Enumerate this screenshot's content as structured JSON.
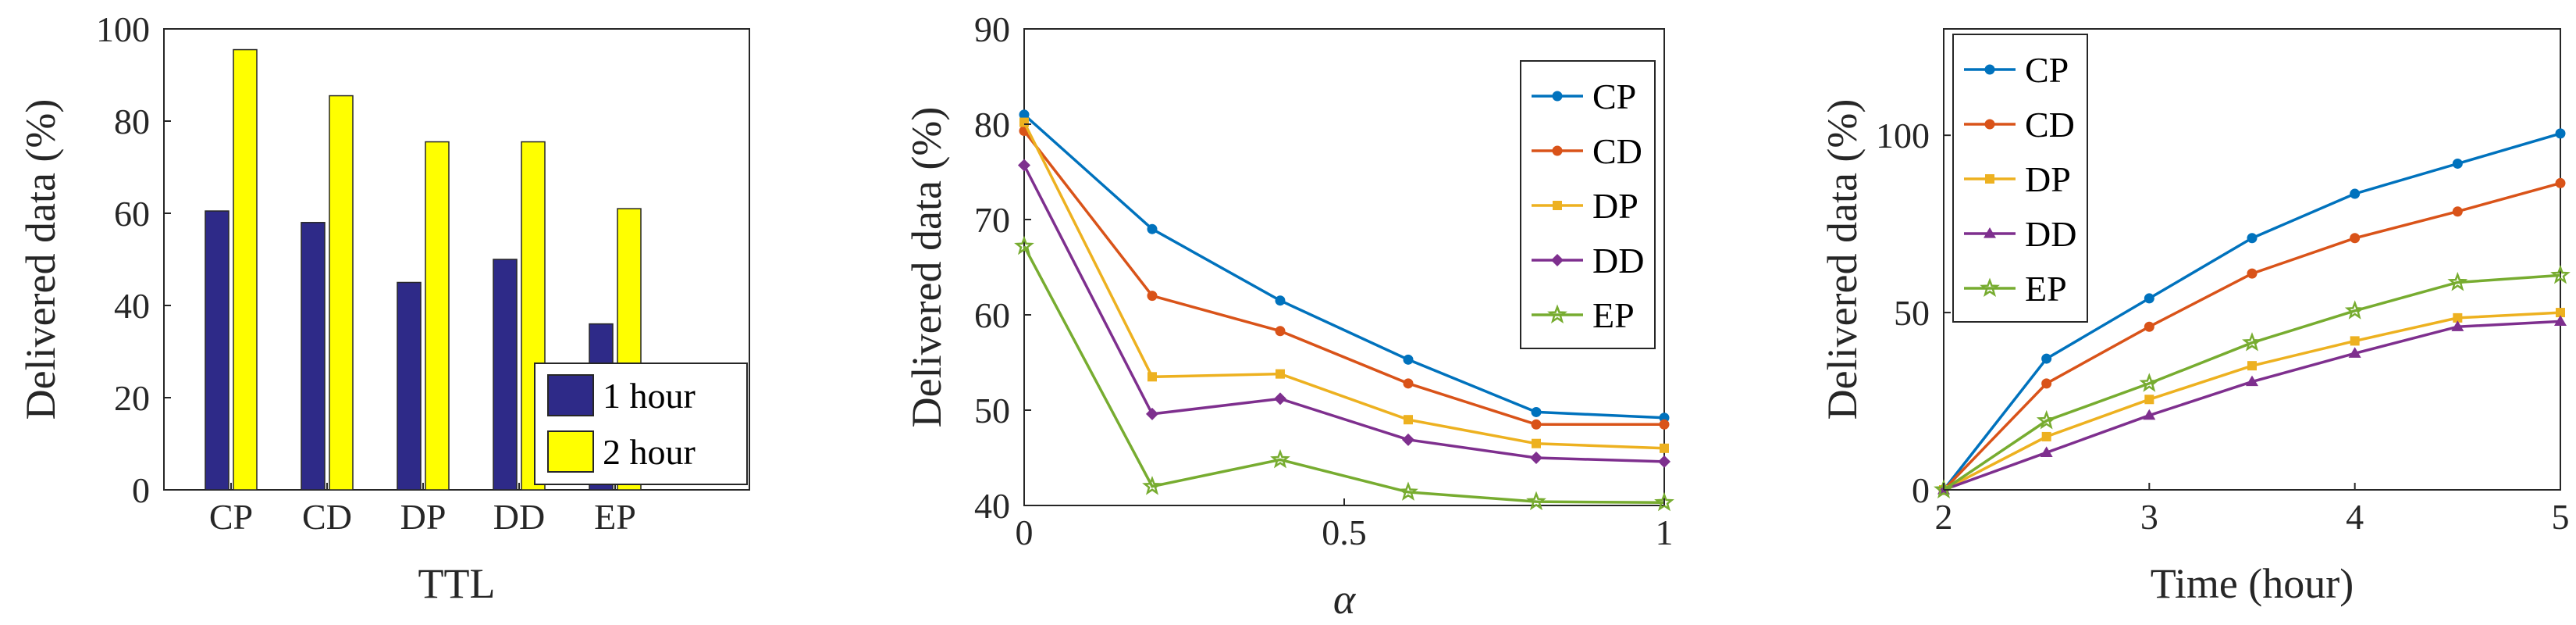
{
  "chart_data": [
    {
      "type": "bar",
      "title": "",
      "xlabel": "TTL",
      "ylabel": "Delivered data (%)",
      "categories": [
        "CP",
        "CD",
        "DP",
        "DD",
        "EP"
      ],
      "ylim": [
        0,
        100
      ],
      "yticks": [
        "0",
        "20",
        "40",
        "60",
        "80",
        "100"
      ],
      "series": [
        {
          "name": "1 hour",
          "color": "#2e2a88",
          "values": [
            60.5,
            58,
            45,
            50,
            36
          ]
        },
        {
          "name": "2 hour",
          "color": "#ffff00",
          "values": [
            95.5,
            85.5,
            75.5,
            75.5,
            61
          ]
        }
      ],
      "legend_position": "bottom-right"
    },
    {
      "type": "line",
      "title": "",
      "xlabel": "α",
      "ylabel": "Delivered data (%)",
      "x": [
        0,
        0.2,
        0.4,
        0.6,
        0.8,
        1.0
      ],
      "xlim": [
        0,
        1
      ],
      "ylim": [
        40,
        90
      ],
      "xticks": [
        "0",
        "0.5",
        "1"
      ],
      "yticks": [
        "40",
        "50",
        "60",
        "70",
        "80",
        "90"
      ],
      "series": [
        {
          "name": "CP",
          "color": "#0072bd",
          "marker": "circle",
          "values": [
            81,
            69,
            61.5,
            55.3,
            49.8,
            49.2
          ]
        },
        {
          "name": "CD",
          "color": "#d95319",
          "marker": "circle",
          "values": [
            79.3,
            62,
            58.3,
            52.8,
            48.5,
            48.5
          ]
        },
        {
          "name": "DP",
          "color": "#edb120",
          "marker": "square",
          "values": [
            80.2,
            53.5,
            53.8,
            49,
            46.5,
            46
          ]
        },
        {
          "name": "DD",
          "color": "#7e2f8e",
          "marker": "diamond",
          "values": [
            75.7,
            49.6,
            51.2,
            46.9,
            45,
            44.6
          ]
        },
        {
          "name": "EP",
          "color": "#77ac30",
          "marker": "star",
          "values": [
            67.2,
            42,
            44.8,
            41.4,
            40.4,
            40.3
          ]
        }
      ],
      "legend_position": "top-right"
    },
    {
      "type": "line",
      "title": "",
      "xlabel": "Time (hour)",
      "ylabel": "Delivered data (%)",
      "x": [
        2,
        2.5,
        3,
        3.5,
        4,
        4.5,
        5
      ],
      "xlim": [
        2,
        5
      ],
      "ylim": [
        0,
        130
      ],
      "xticks": [
        "2",
        "3",
        "4",
        "5"
      ],
      "yticks": [
        "0",
        "50",
        "100"
      ],
      "series": [
        {
          "name": "CP",
          "color": "#0072bd",
          "marker": "circle",
          "values": [
            0,
            37,
            54,
            71,
            83.5,
            92,
            100.5
          ]
        },
        {
          "name": "CD",
          "color": "#d95319",
          "marker": "circle",
          "values": [
            0,
            30,
            46,
            61,
            71,
            78.5,
            86.5
          ]
        },
        {
          "name": "DP",
          "color": "#edb120",
          "marker": "square",
          "values": [
            0,
            15,
            25.5,
            35,
            42,
            48.5,
            50
          ]
        },
        {
          "name": "DD",
          "color": "#7e2f8e",
          "marker": "triangle",
          "values": [
            0,
            10.5,
            21,
            30.5,
            38.5,
            46,
            47.5
          ]
        },
        {
          "name": "EP",
          "color": "#77ac30",
          "marker": "star",
          "values": [
            0,
            19.5,
            30,
            41.5,
            50.5,
            58.5,
            60.5
          ]
        }
      ],
      "legend_position": "top-left"
    }
  ]
}
